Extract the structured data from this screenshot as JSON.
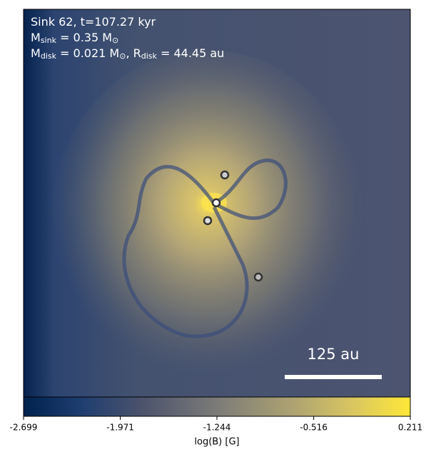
{
  "chart_data": {
    "type": "colormap-image",
    "info_lines": [
      [
        {
          "text": "Sink 62, t=107.27 kyr"
        }
      ],
      [
        {
          "text": "M"
        },
        {
          "sub": "sink"
        },
        {
          "text": " = 0.35 M"
        },
        {
          "sub": "⊙"
        }
      ],
      [
        {
          "text": "M"
        },
        {
          "sub": "disk"
        },
        {
          "text": " = 0.021 M"
        },
        {
          "sub": "⊙"
        },
        {
          "text": ", R"
        },
        {
          "sub": "disk"
        },
        {
          "text": " = 44.45 au"
        }
      ]
    ],
    "scale_bar_label": "125 au",
    "colorbar": {
      "label": "log(B) [G]",
      "lim": [
        -2.699,
        0.211
      ],
      "ticks": [
        -2.699,
        -1.971,
        -1.244,
        -0.516,
        0.211
      ]
    }
  }
}
